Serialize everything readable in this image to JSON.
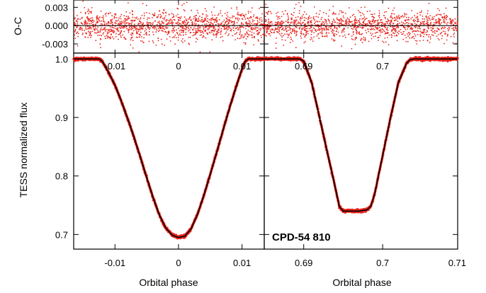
{
  "chart_data": {
    "type": "scatter",
    "star_label": "CPD-54 810",
    "ylabel_main": "TESS normalized flux",
    "ylabel_resid": "O-C",
    "xlabel": "Orbital phase",
    "colors": {
      "data": "#e8241c",
      "model": "#000000"
    },
    "panels": [
      {
        "name": "primary-eclipse",
        "xlim": [
          -0.0165,
          0.0135
        ],
        "xticks": [
          -0.01,
          0,
          0.01
        ],
        "xtick_labels": [
          "-0.01",
          "0",
          "0.01"
        ],
        "ylim": [
          0.675,
          1.01
        ],
        "yticks": [
          0.7,
          0.8,
          0.9,
          1.0
        ],
        "ytick_labels": [
          "0.7",
          "0.8",
          "0.9",
          "1.0"
        ],
        "model": {
          "phase": [
            -0.0165,
            -0.0125,
            -0.012,
            -0.011,
            -0.01,
            -0.009,
            -0.008,
            -0.007,
            -0.006,
            -0.005,
            -0.004,
            -0.003,
            -0.002,
            -0.001,
            0.0,
            0.001,
            0.002,
            0.003,
            0.004,
            0.005,
            0.006,
            0.007,
            0.008,
            0.009,
            0.01,
            0.0105,
            0.011,
            0.0135
          ],
          "flux": [
            1.0,
            1.0,
            0.996,
            0.977,
            0.955,
            0.928,
            0.898,
            0.866,
            0.832,
            0.797,
            0.763,
            0.733,
            0.711,
            0.699,
            0.695,
            0.697,
            0.71,
            0.735,
            0.767,
            0.803,
            0.84,
            0.878,
            0.915,
            0.95,
            0.983,
            0.996,
            1.0,
            1.0
          ]
        }
      },
      {
        "name": "secondary-eclipse",
        "xlim": [
          0.685,
          0.7095
        ],
        "xticks": [
          0.69,
          0.7
        ],
        "xtick_labels": [
          "0.69",
          "0.7"
        ],
        "xticks_bottom": [
          0.69,
          0.7,
          0.71
        ],
        "xtick_labels_bottom": [
          "0.69",
          "0.7",
          "0.71"
        ],
        "ylim": [
          0.675,
          1.01
        ],
        "yticks": [
          0.7,
          0.8,
          0.9,
          1.0
        ],
        "model": {
          "phase": [
            0.685,
            0.6895,
            0.69,
            0.691,
            0.692,
            0.693,
            0.694,
            0.6945,
            0.695,
            0.697,
            0.698,
            0.6985,
            0.699,
            0.7,
            0.701,
            0.702,
            0.703,
            0.7035,
            0.704,
            0.7095
          ],
          "flux": [
            1.0,
            1.0,
            0.996,
            0.96,
            0.9,
            0.84,
            0.78,
            0.748,
            0.74,
            0.74,
            0.742,
            0.748,
            0.77,
            0.835,
            0.9,
            0.96,
            0.992,
            0.999,
            1.0,
            1.0
          ]
        }
      }
    ],
    "residuals": {
      "ylim": [
        -0.0045,
        0.0042
      ],
      "yticks": [
        -0.003,
        0.0,
        0.003
      ],
      "ytick_labels": [
        "-0.003",
        "0.000",
        "0.003"
      ],
      "scatter_sigma": 0.0012
    }
  }
}
